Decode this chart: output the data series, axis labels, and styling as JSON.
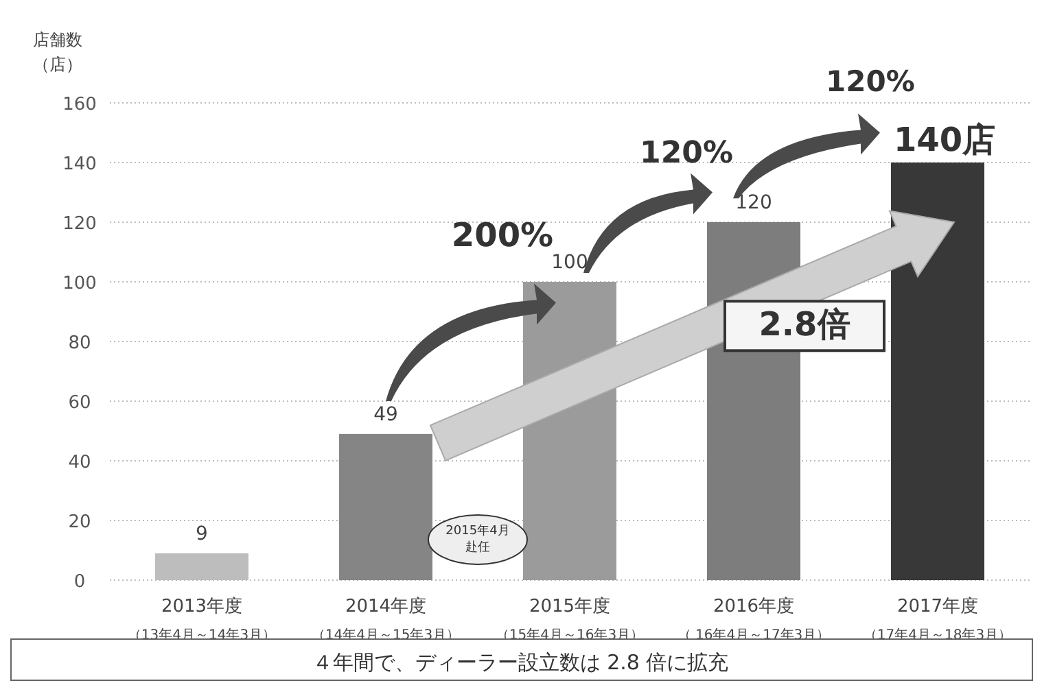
{
  "chart_data": {
    "type": "bar",
    "ylabel": "店舗数（店）",
    "categories": [
      "2013年度（13年4月～14年3月）",
      "2014年度（14年4月～15年3月）",
      "2015年度（15年4月～16年3月）",
      "2016年度（ 16年4月～17年3月）",
      "2017年度（17年4月～18年3月）"
    ],
    "values": [
      9,
      49,
      100,
      120,
      140
    ],
    "colors": [
      "#bdbdbd",
      "#858585",
      "#9b9b9b",
      "#7d7d7d",
      "#383838"
    ],
    "value_labels": [
      "9",
      "49",
      "100",
      "120",
      null
    ],
    "ylim": [
      0,
      160
    ],
    "yticks": [
      0,
      20,
      40,
      60,
      80,
      100,
      120,
      140,
      160
    ],
    "grid": "y",
    "annotations": [
      "200%",
      "120%",
      "120%",
      "140店",
      "2.8倍",
      "2015年4月赴任",
      "４年間で、ディーラー設立数は 2.8 倍に拡充"
    ]
  }
}
